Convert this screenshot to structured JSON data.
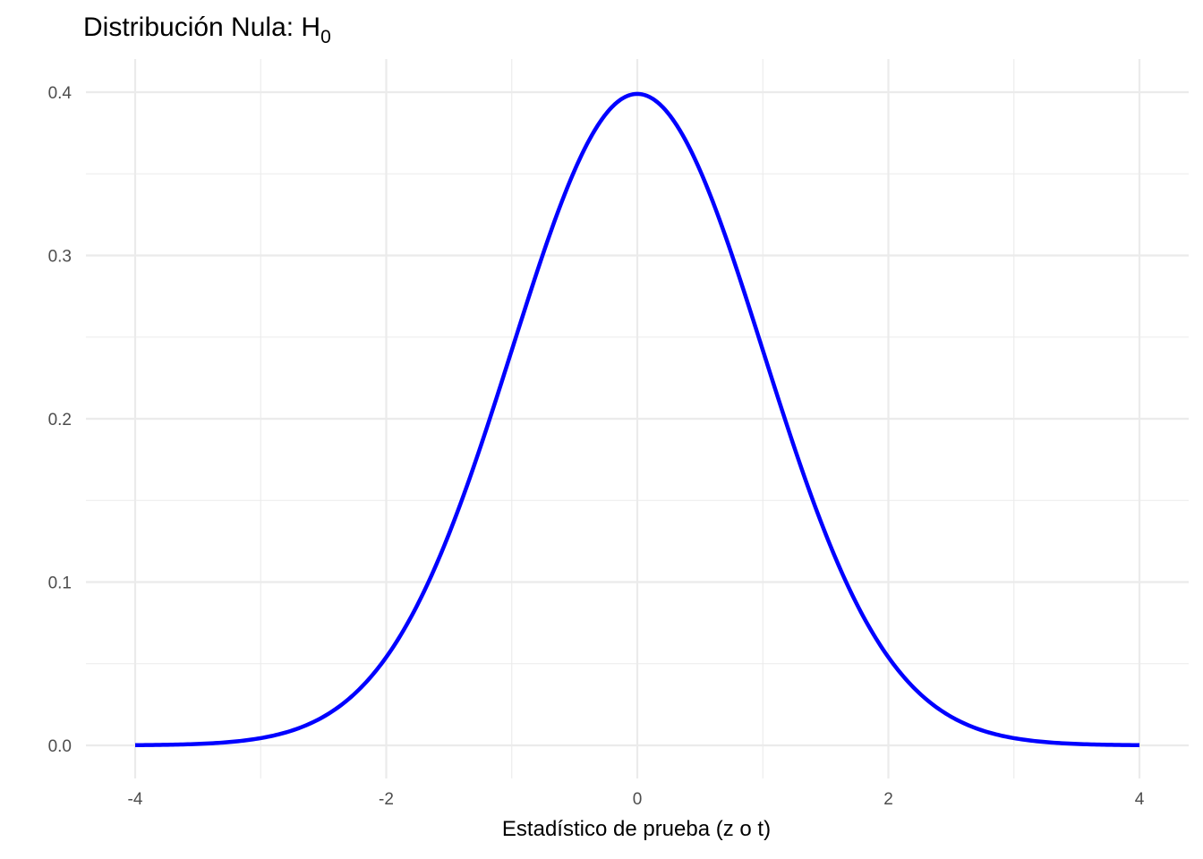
{
  "chart_data": {
    "type": "line",
    "title": "Distribución Nula: H",
    "title_subscript": "0",
    "xlabel": "Estadístico de prueba (z o t)",
    "ylabel": "",
    "xlim": [
      -4,
      4
    ],
    "ylim": [
      0,
      0.4
    ],
    "x_ticks": [
      -4,
      -2,
      0,
      2,
      4
    ],
    "x_tick_labels": [
      "-4",
      "-2",
      "0",
      "2",
      "4"
    ],
    "y_ticks": [
      0.0,
      0.1,
      0.2,
      0.3,
      0.4
    ],
    "y_tick_labels": [
      "0.0",
      "0.1",
      "0.2",
      "0.3",
      "0.4"
    ],
    "grid": true,
    "legend": "none",
    "line_color": "#0000ff",
    "series": [
      {
        "function": "standard normal density",
        "x": [
          -4,
          -3.5,
          -3,
          -2.5,
          -2,
          -1.5,
          -1,
          -0.5,
          0,
          0.5,
          1,
          1.5,
          2,
          2.5,
          3,
          3.5,
          4
        ],
        "values": [
          0.0001,
          0.0009,
          0.0044,
          0.0175,
          0.054,
          0.1295,
          0.242,
          0.3521,
          0.3989,
          0.3521,
          0.242,
          0.1295,
          0.054,
          0.0175,
          0.0044,
          0.0009,
          0.0001
        ]
      }
    ]
  }
}
